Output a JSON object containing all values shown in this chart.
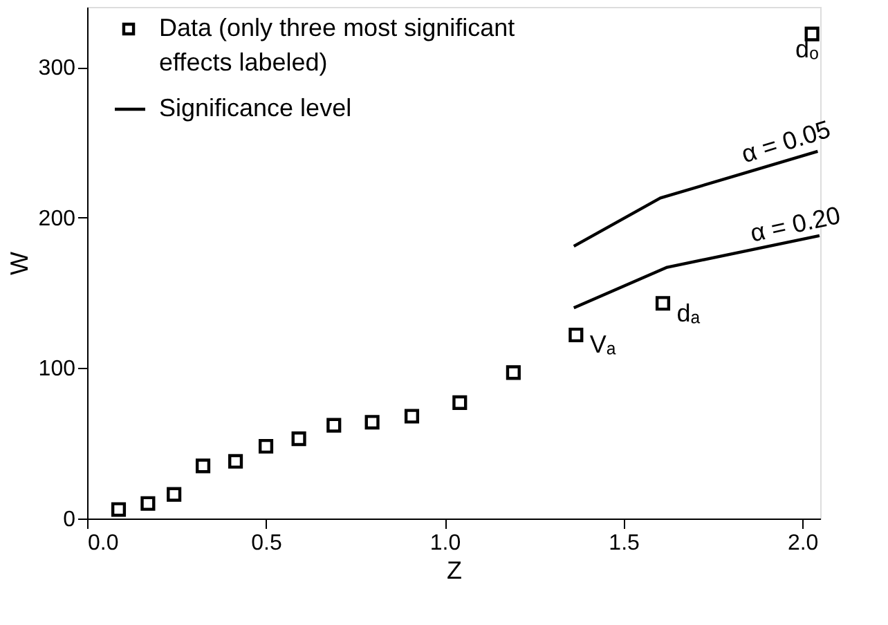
{
  "chart_data": {
    "type": "scatter",
    "xlabel": "Z",
    "ylabel": "W",
    "xlim": [
      0,
      2.05
    ],
    "ylim": [
      0,
      340
    ],
    "xticks": [
      {
        "value": 0,
        "label": "0.0"
      },
      {
        "value": 0.5,
        "label": "0.5"
      },
      {
        "value": 1,
        "label": "1.0"
      },
      {
        "value": 1.5,
        "label": "1.5"
      },
      {
        "value": 2,
        "label": "2.0"
      }
    ],
    "yticks": [
      0,
      100,
      200,
      300
    ],
    "grid": false,
    "legend": "top left",
    "series": [
      {
        "name": "Data (only three most significant effects labeled)",
        "marker": "square",
        "color": "#000000",
        "x": [
          0.088,
          0.17,
          0.243,
          0.324,
          0.415,
          0.5,
          0.592,
          0.69,
          0.797,
          0.908,
          1.042,
          1.192,
          1.367,
          1.61,
          2.027
        ],
        "values": [
          6,
          10,
          16,
          35,
          38,
          48,
          53,
          62,
          64,
          68,
          77,
          97,
          122,
          143,
          322
        ]
      },
      {
        "name": "Significance level",
        "type": "line",
        "marker": "none",
        "color": "#000000",
        "line_style": "solid",
        "x": [
          1.361,
          1.603,
          2.043
        ],
        "values": [
          181,
          213,
          244
        ]
      },
      {
        "type": "line",
        "marker": "none",
        "color": "#000000",
        "line_style": "solid",
        "x": [
          1.361,
          1.622,
          2.048
        ],
        "values": [
          140,
          167,
          188
        ]
      }
    ],
    "annotations": [
      {
        "text": "Vₐ",
        "x": 1.367,
        "y": 122
      },
      {
        "text": "dₐ",
        "x": 1.61,
        "y": 143
      },
      {
        "text": "dₒ",
        "x": 2.027,
        "y": 322
      },
      {
        "text": "α = 0.05",
        "x": 1.82,
        "y": 232
      },
      {
        "text": "α = 0.20",
        "x": 1.84,
        "y": 180
      }
    ]
  }
}
